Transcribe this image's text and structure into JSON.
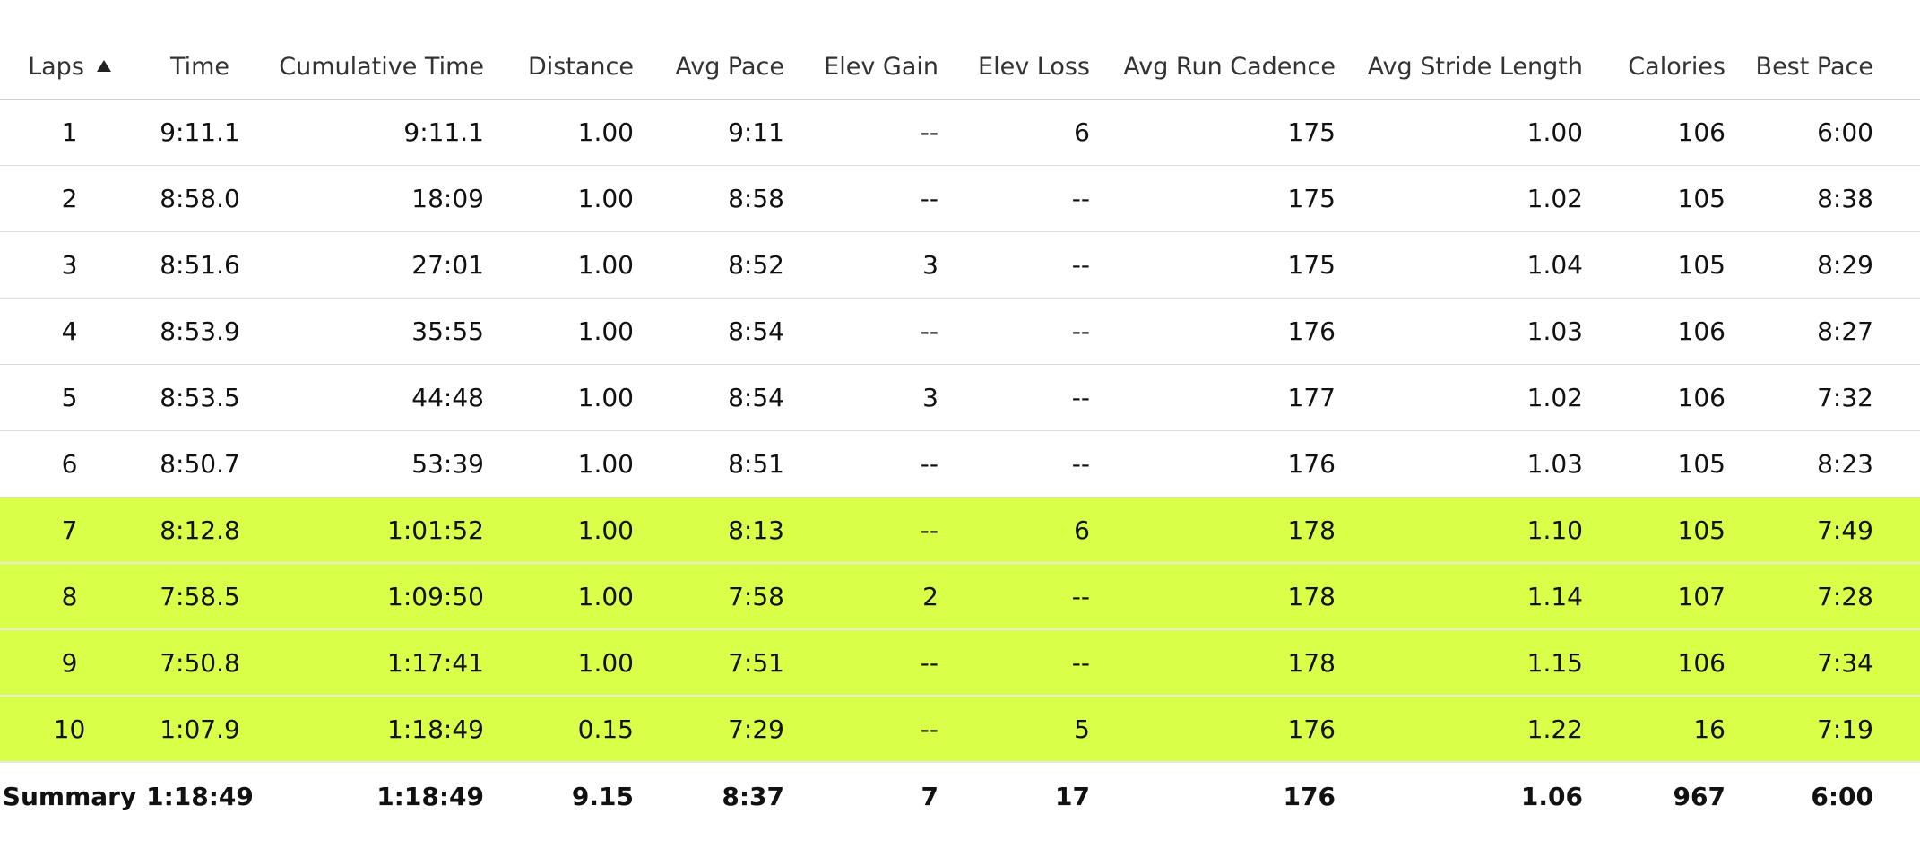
{
  "columns": [
    "Laps",
    "Time",
    "Cumulative Time",
    "Distance",
    "Avg Pace",
    "Elev Gain",
    "Elev Loss",
    "Avg Run Cadence",
    "Avg Stride Length",
    "Calories",
    "Best Pace"
  ],
  "highlight_color": "#d9ff48",
  "sort_icon": "sort-ascending-icon",
  "rows": [
    [
      "1",
      "9:11.1",
      "9:11.1",
      "1.00",
      "9:11",
      "--",
      "6",
      "175",
      "1.00",
      "106",
      "6:00"
    ],
    [
      "2",
      "8:58.0",
      "18:09",
      "1.00",
      "8:58",
      "--",
      "--",
      "175",
      "1.02",
      "105",
      "8:38"
    ],
    [
      "3",
      "8:51.6",
      "27:01",
      "1.00",
      "8:52",
      "3",
      "--",
      "175",
      "1.04",
      "105",
      "8:29"
    ],
    [
      "4",
      "8:53.9",
      "35:55",
      "1.00",
      "8:54",
      "--",
      "--",
      "176",
      "1.03",
      "106",
      "8:27"
    ],
    [
      "5",
      "8:53.5",
      "44:48",
      "1.00",
      "8:54",
      "3",
      "--",
      "177",
      "1.02",
      "106",
      "7:32"
    ],
    [
      "6",
      "8:50.7",
      "53:39",
      "1.00",
      "8:51",
      "--",
      "--",
      "176",
      "1.03",
      "105",
      "8:23"
    ],
    [
      "7",
      "8:12.8",
      "1:01:52",
      "1.00",
      "8:13",
      "--",
      "6",
      "178",
      "1.10",
      "105",
      "7:49"
    ],
    [
      "8",
      "7:58.5",
      "1:09:50",
      "1.00",
      "7:58",
      "2",
      "--",
      "178",
      "1.14",
      "107",
      "7:28"
    ],
    [
      "9",
      "7:50.8",
      "1:17:41",
      "1.00",
      "7:51",
      "--",
      "--",
      "178",
      "1.15",
      "106",
      "7:34"
    ],
    [
      "10",
      "1:07.9",
      "1:18:49",
      "0.15",
      "7:29",
      "--",
      "5",
      "176",
      "1.22",
      "16",
      "7:19"
    ]
  ],
  "highlighted_rows": [
    7,
    8,
    9,
    10
  ],
  "summary": [
    "Summary",
    "1:18:49",
    "1:18:49",
    "9.15",
    "8:37",
    "7",
    "17",
    "176",
    "1.06",
    "967",
    "6:00"
  ]
}
